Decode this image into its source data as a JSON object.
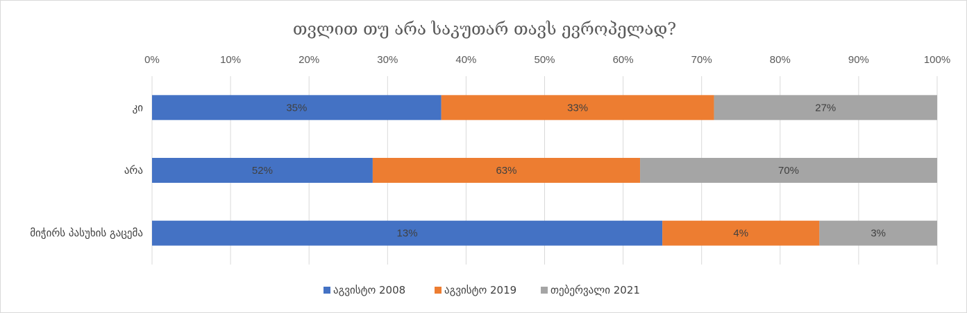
{
  "chart_data": {
    "type": "bar",
    "orientation": "horizontal",
    "stacked": "percent",
    "title": "თვლით თუ არა საკუთარ თავს ევროპელად?",
    "xlim": [
      0,
      100
    ],
    "x_ticks": [
      "0%",
      "10%",
      "20%",
      "30%",
      "40%",
      "50%",
      "60%",
      "70%",
      "80%",
      "90%",
      "100%"
    ],
    "categories": [
      "კი",
      "არა",
      "მიჭირს პასუხის გაცემა"
    ],
    "series": [
      {
        "name": "აგვისტო 2008",
        "color": "#4472c4",
        "values": [
          35,
          52,
          13
        ],
        "labels": [
          "35%",
          "52%",
          "13%"
        ]
      },
      {
        "name": "აგვისტო 2019",
        "color": "#ed7d31",
        "values": [
          33,
          63,
          4
        ],
        "labels": [
          "33%",
          "63%",
          "4%"
        ]
      },
      {
        "name": "თებერვალი 2021",
        "color": "#a5a5a5",
        "values": [
          27,
          70,
          3
        ],
        "labels": [
          "27%",
          "70%",
          "3%"
        ]
      }
    ],
    "grid": true,
    "legend_position": "bottom"
  }
}
